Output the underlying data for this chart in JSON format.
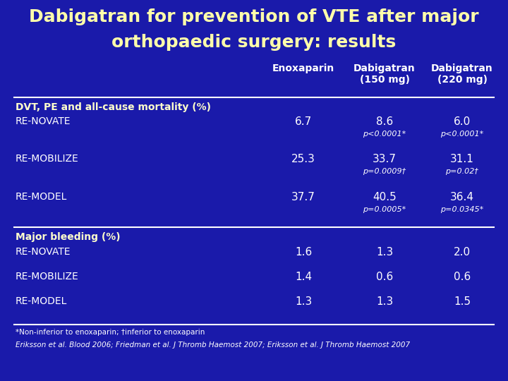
{
  "title_line1": "Dabigatran for prevention of VTE after major",
  "title_line2": "orthopaedic surgery: results",
  "bg_color": "#1a1aaa",
  "title_color": "#FFFFAA",
  "text_color": "#FFFFFF",
  "header_color": "#FFFFFF",
  "section_color": "#FFFFCC",
  "line_color": "#FFFFFF",
  "col_headers": [
    "Enoxaparin",
    "Dabigatran\n(150 mg)",
    "Dabigatran\n(220 mg)"
  ],
  "sections": [
    {
      "label": "DVT, PE and all-cause mortality (%)",
      "rows": [
        {
          "name": "RE-NOVATE",
          "enox": "6.7",
          "dab150": "8.6",
          "dab150p": "p<0.0001*",
          "dab220": "6.0",
          "dab220p": "p<0.0001*"
        },
        {
          "name": "RE-MOBILIZE",
          "enox": "25.3",
          "dab150": "33.7",
          "dab150p": "p=0.0009†",
          "dab220": "31.1",
          "dab220p": "p=0.02†"
        },
        {
          "name": "RE-MODEL",
          "enox": "37.7",
          "dab150": "40.5",
          "dab150p": "p=0.0005*",
          "dab220": "36.4",
          "dab220p": "p=0.0345*"
        }
      ]
    },
    {
      "label": "Major bleeding (%)",
      "rows": [
        {
          "name": "RE-NOVATE",
          "enox": "1.6",
          "dab150": "1.3",
          "dab150p": "",
          "dab220": "2.0",
          "dab220p": ""
        },
        {
          "name": "RE-MOBILIZE",
          "enox": "1.4",
          "dab150": "0.6",
          "dab150p": "",
          "dab220": "0.6",
          "dab220p": ""
        },
        {
          "name": "RE-MODEL",
          "enox": "1.3",
          "dab150": "1.3",
          "dab150p": "",
          "dab220": "1.5",
          "dab220p": ""
        }
      ]
    }
  ],
  "footnote1": "*Non-inferior to enoxaparin; †inferior to enoxaparin",
  "footnote2": "Eriksson et al. Blood 2006; Friedman et al. J Thromb Haemost 2007; Eriksson et al. J Thromb Haemost 2007"
}
